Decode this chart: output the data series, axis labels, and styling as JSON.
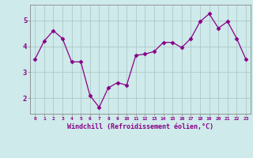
{
  "x": [
    0,
    1,
    2,
    3,
    4,
    5,
    6,
    7,
    8,
    9,
    10,
    11,
    12,
    13,
    14,
    15,
    16,
    17,
    18,
    19,
    20,
    21,
    22,
    23
  ],
  "y": [
    3.5,
    4.2,
    4.6,
    4.3,
    3.4,
    3.4,
    2.1,
    1.65,
    2.4,
    2.6,
    2.5,
    3.65,
    3.7,
    3.8,
    4.15,
    4.15,
    3.95,
    4.3,
    4.95,
    5.25,
    4.7,
    4.95,
    4.3,
    3.5
  ],
  "xlabel": "Windchill (Refroidissement éolien,°C)",
  "line_color": "#880088",
  "marker": "D",
  "marker_size": 2.5,
  "bg_color": "#ceeaea",
  "grid_color": "#b0c8c8",
  "ylim": [
    1.4,
    5.6
  ],
  "xlim": [
    -0.5,
    23.5
  ],
  "yticks": [
    2,
    3,
    4,
    5
  ],
  "xticks": [
    0,
    1,
    2,
    3,
    4,
    5,
    6,
    7,
    8,
    9,
    10,
    11,
    12,
    13,
    14,
    15,
    16,
    17,
    18,
    19,
    20,
    21,
    22,
    23
  ],
  "xtick_labels": [
    "0",
    "1",
    "2",
    "3",
    "4",
    "5",
    "6",
    "7",
    "8",
    "9",
    "10",
    "11",
    "12",
    "13",
    "14",
    "15",
    "16",
    "17",
    "18",
    "19",
    "20",
    "21",
    "22",
    "23"
  ]
}
